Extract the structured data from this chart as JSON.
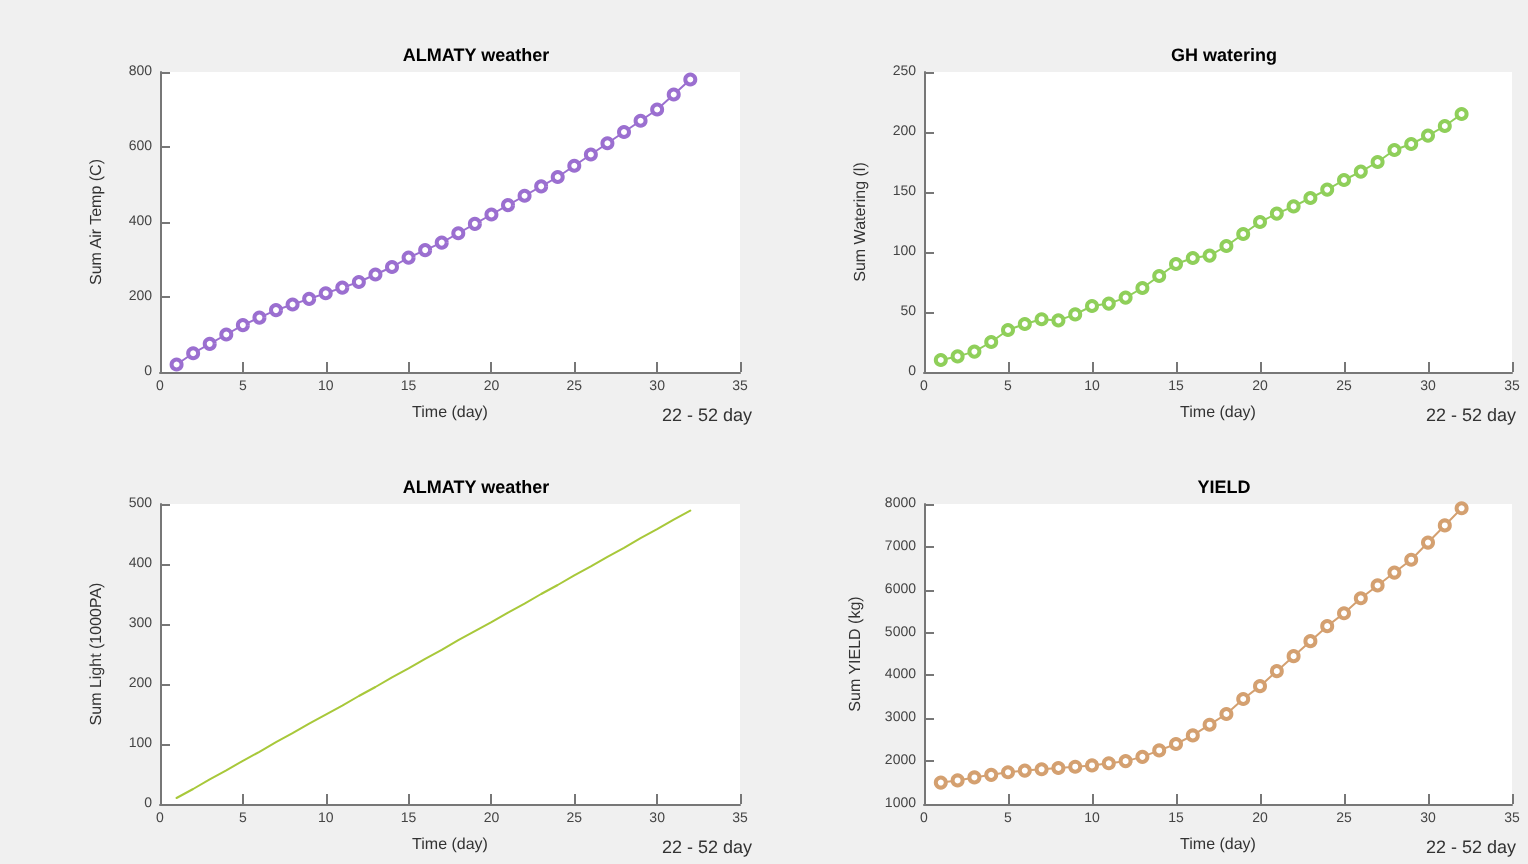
{
  "chart_data": [
    {
      "type": "line",
      "title": "ALMATY weather",
      "xlabel": "Time (day)",
      "ylabel": "Sum Air Temp (C)",
      "annotations": [
        "22 - 52 day"
      ],
      "marker": "circle",
      "line_style": "solid",
      "grid": false,
      "x": [
        1,
        2,
        3,
        4,
        5,
        6,
        7,
        8,
        9,
        10,
        11,
        12,
        13,
        14,
        15,
        16,
        17,
        18,
        19,
        20,
        21,
        22,
        23,
        24,
        25,
        26,
        27,
        28,
        29,
        30,
        31,
        32
      ],
      "series": [
        {
          "color": "#9b6fd0",
          "values": [
            20,
            50,
            75,
            100,
            125,
            145,
            165,
            180,
            195,
            210,
            225,
            240,
            260,
            280,
            305,
            325,
            345,
            370,
            395,
            420,
            445,
            470,
            495,
            520,
            550,
            580,
            610,
            640,
            670,
            700,
            740,
            780
          ]
        }
      ],
      "xlim": [
        0,
        35
      ],
      "xticks": [
        0,
        5,
        10,
        15,
        20,
        25,
        30,
        35
      ],
      "ylim": [
        0,
        800
      ],
      "yticks": [
        0,
        200,
        400,
        600,
        800
      ]
    },
    {
      "type": "line",
      "title": "GH watering",
      "xlabel": "Time (day)",
      "ylabel": "Sum Watering (l)",
      "annotations": [
        "22 - 52 day"
      ],
      "marker": "circle",
      "line_style": "solid",
      "grid": false,
      "x": [
        1,
        2,
        3,
        4,
        5,
        6,
        7,
        8,
        9,
        10,
        11,
        12,
        13,
        14,
        15,
        16,
        17,
        18,
        19,
        20,
        21,
        22,
        23,
        24,
        25,
        26,
        27,
        28,
        29,
        30,
        31,
        32
      ],
      "series": [
        {
          "color": "#8fcf5a",
          "values": [
            10,
            13,
            17,
            25,
            35,
            40,
            44,
            43,
            48,
            55,
            57,
            62,
            70,
            80,
            90,
            95,
            97,
            105,
            115,
            125,
            132,
            138,
            145,
            152,
            160,
            167,
            175,
            185,
            190,
            197,
            205,
            215
          ]
        }
      ],
      "xlim": [
        0,
        35
      ],
      "xticks": [
        0,
        5,
        10,
        15,
        20,
        25,
        30,
        35
      ],
      "ylim": [
        0,
        250
      ],
      "yticks": [
        0,
        50,
        100,
        150,
        200,
        250
      ]
    },
    {
      "type": "line",
      "title": "ALMATY weather",
      "xlabel": "Time (day)",
      "ylabel": "Sum Light (1000PA)",
      "annotations": [
        "22 - 52 day"
      ],
      "marker": "none",
      "line_style": "solid",
      "grid": false,
      "x": [
        1,
        2,
        3,
        4,
        5,
        6,
        7,
        8,
        9,
        10,
        11,
        12,
        13,
        14,
        15,
        16,
        17,
        18,
        19,
        20,
        21,
        22,
        23,
        24,
        25,
        26,
        27,
        28,
        29,
        30,
        31,
        32
      ],
      "series": [
        {
          "color": "#a8c83a",
          "values": [
            10,
            25,
            41,
            56,
            72,
            87,
            103,
            118,
            134,
            149,
            164,
            180,
            195,
            211,
            226,
            242,
            257,
            273,
            288,
            303,
            319,
            334,
            350,
            365,
            381,
            396,
            412,
            427,
            443,
            458,
            474,
            489
          ]
        }
      ],
      "xlim": [
        0,
        35
      ],
      "xticks": [
        0,
        5,
        10,
        15,
        20,
        25,
        30,
        35
      ],
      "ylim": [
        0,
        500
      ],
      "yticks": [
        0,
        100,
        200,
        300,
        400,
        500
      ]
    },
    {
      "type": "line",
      "title": "YIELD",
      "xlabel": "Time (day)",
      "ylabel": "Sum YIELD (kg)",
      "annotations": [
        "22 - 52 day"
      ],
      "marker": "circle",
      "line_style": "solid",
      "grid": false,
      "x": [
        1,
        2,
        3,
        4,
        5,
        6,
        7,
        8,
        9,
        10,
        11,
        12,
        13,
        14,
        15,
        16,
        17,
        18,
        19,
        20,
        21,
        22,
        23,
        24,
        25,
        26,
        27,
        28,
        29,
        30,
        31,
        32
      ],
      "series": [
        {
          "color": "#d4a070",
          "values": [
            1500,
            1550,
            1620,
            1680,
            1740,
            1780,
            1810,
            1840,
            1870,
            1900,
            1950,
            2000,
            2100,
            2250,
            2400,
            2600,
            2850,
            3100,
            3450,
            3750,
            4100,
            4450,
            4800,
            5150,
            5450,
            5800,
            6100,
            6400,
            6700,
            7100,
            7500,
            7900
          ]
        }
      ],
      "xlim": [
        0,
        35
      ],
      "xticks": [
        0,
        5,
        10,
        15,
        20,
        25,
        30,
        35
      ],
      "ylim": [
        1000,
        8000
      ],
      "yticks": [
        1000,
        2000,
        3000,
        4000,
        5000,
        6000,
        7000,
        8000
      ]
    }
  ]
}
